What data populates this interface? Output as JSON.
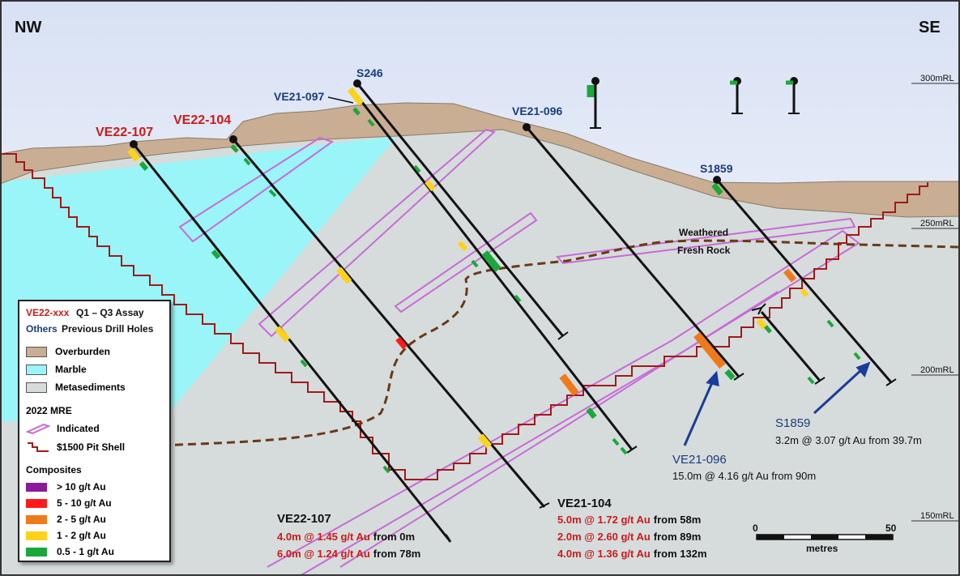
{
  "orientation": {
    "left": "NW",
    "right": "SE"
  },
  "rl_labels": [
    "300mRL",
    "250mRL",
    "200mRL",
    "150mRL"
  ],
  "surface_labels": {
    "weathered": "Weathered",
    "fresh": "Fresh Rock"
  },
  "holes": {
    "ve22_107": "VE22-107",
    "ve22_104": "VE22-104",
    "ve21_097": "VE21-097",
    "s246": "S246",
    "ve21_096": "VE21-096",
    "s1859": "S1859"
  },
  "intercepts": {
    "ve22_107": {
      "title": "VE22-107",
      "lines": [
        {
          "assay": "4.0m @ 1.45 g/t Au",
          "from": "from 0m"
        },
        {
          "assay": "6.0m @ 1.24 g/t Au",
          "from": "from 78m"
        }
      ]
    },
    "ve21_104": {
      "title": "VE21-104",
      "lines": [
        {
          "assay": "5.0m @ 1.72 g/t Au",
          "from": "from 58m"
        },
        {
          "assay": "2.0m @ 2.60 g/t Au",
          "from": "from 89m"
        },
        {
          "assay": "4.0m @ 1.36 g/t Au",
          "from": "from 132m"
        }
      ]
    },
    "ve21_096": {
      "title": "VE21-096",
      "text": "15.0m @ 4.16 g/t Au from 90m"
    },
    "s1859": {
      "title": "S1859",
      "text": "3.2m @ 3.07 g/t Au from 39.7m"
    }
  },
  "scale_bar": {
    "start": "0",
    "end": "50",
    "unit": "metres"
  },
  "legend": {
    "ve_key": "VE22-xxx",
    "ve_desc": "Q1 – Q3 Assay",
    "others_key": "Others",
    "others_desc": "Previous Drill Holes",
    "overburden": "Overburden",
    "marble": "Marble",
    "metasediments": "Metasediments",
    "mre_title": "2022 MRE",
    "indicated": "Indicated",
    "pit_shell": "$1500 Pit Shell",
    "composites_title": "Composites",
    "composites": [
      {
        "label": "> 10 g/t Au",
        "color": "#8b1a9b"
      },
      {
        "label": "5 - 10 g/t Au",
        "color": "#ff1a1a"
      },
      {
        "label": "2 - 5 g/t Au",
        "color": "#f07a1a"
      },
      {
        "label": "1 - 2 g/t Au",
        "color": "#ffd21a"
      },
      {
        "label": "0.5 - 1 g/t Au",
        "color": "#1aa83a"
      }
    ]
  },
  "colors": {
    "overburden": "#c9ae93",
    "marble": "#9af5f8",
    "metasediments": "#d6dcdb",
    "sky_top": "#dfe6f6",
    "pit_shell": "#a01a1a",
    "indicated": "#c86ad8",
    "contact": "#6b3a16",
    "new_hole_label": "#cc1a1a",
    "old_hole_label": "#1a3d7a"
  }
}
